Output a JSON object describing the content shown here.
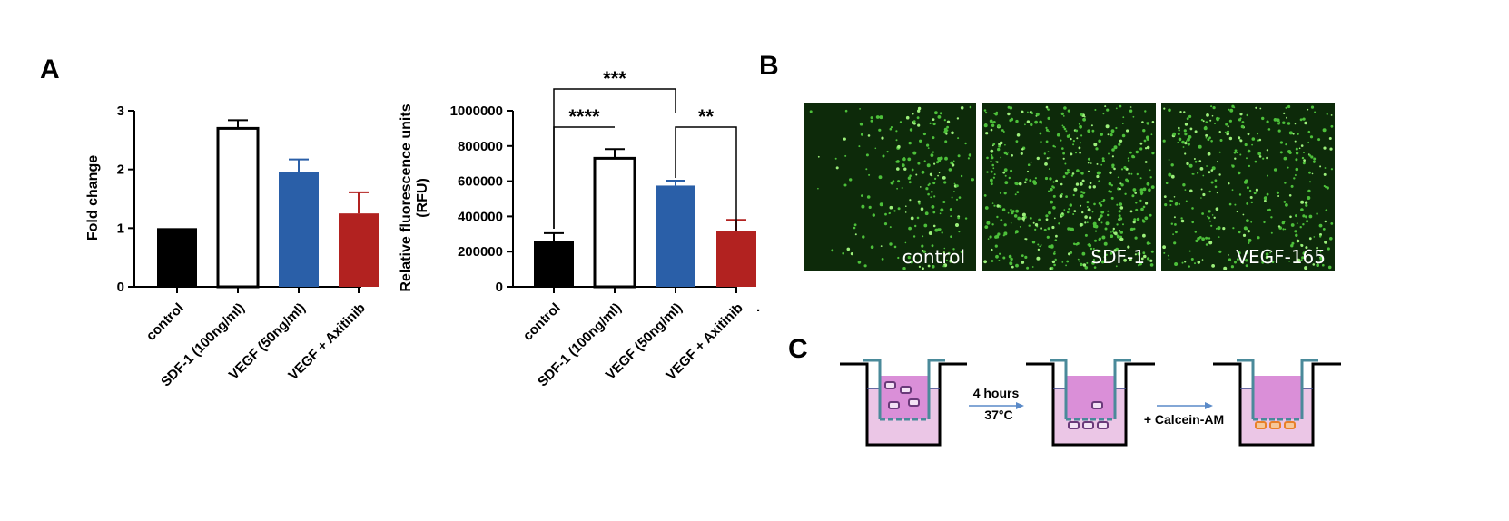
{
  "panels": {
    "a": "A",
    "b": "B",
    "c": "C"
  },
  "colors": {
    "control": "#000000",
    "sdf": "#ffffff",
    "vegf": "#2a5fa8",
    "axitinib": "#b22220",
    "medium_dark": "#da8fd8",
    "medium_light": "#ebc6e6",
    "insert": "#4a8a9a",
    "cell_purple": "#7a4a8a",
    "cell_orange": "#e8802a",
    "arrow": "#5a8ac8",
    "micro_bg": "#0d2a0a"
  },
  "chart_data": [
    {
      "type": "bar",
      "ylabel": "Fold change",
      "ylim": [
        0,
        3
      ],
      "yticks": [
        "0",
        "1",
        "2",
        "3"
      ],
      "categories": [
        "control",
        "SDF-1 (100ng/ml)",
        "VEGF (50ng/ml)",
        "VEGF + Axitinib"
      ],
      "values": [
        1.0,
        2.7,
        1.95,
        1.25
      ],
      "errors": [
        0,
        0.14,
        0.22,
        0.36
      ]
    },
    {
      "type": "bar",
      "ylabel": "Relative fluorescence units (RFU)",
      "ylim": [
        0,
        1000000
      ],
      "yticks": [
        "0",
        "200000",
        "400000",
        "600000",
        "800000",
        "1000000"
      ],
      "categories": [
        "control",
        "SDF-1 (100ng/ml)",
        "VEGF (50ng/ml)",
        "VEGF + Axitinib"
      ],
      "values": [
        260000,
        730000,
        575000,
        318000
      ],
      "errors": [
        45000,
        52000,
        28000,
        62000
      ],
      "significance": [
        {
          "from": "control",
          "to": "VEGF (50ng/ml)",
          "label": "***"
        },
        {
          "from": "control",
          "to": "SDF-1 (100ng/ml)",
          "label": "****"
        },
        {
          "from": "VEGF (50ng/ml)",
          "to": "VEGF + Axitinib",
          "label": "**"
        }
      ],
      "trailing_mark": "."
    }
  ],
  "micrographs": [
    "control",
    "SDF-1",
    "VEGF-165"
  ],
  "protocol": {
    "step1_time": "4 hours",
    "step1_temp": "37°C",
    "step2": "+ Calcein-AM"
  }
}
